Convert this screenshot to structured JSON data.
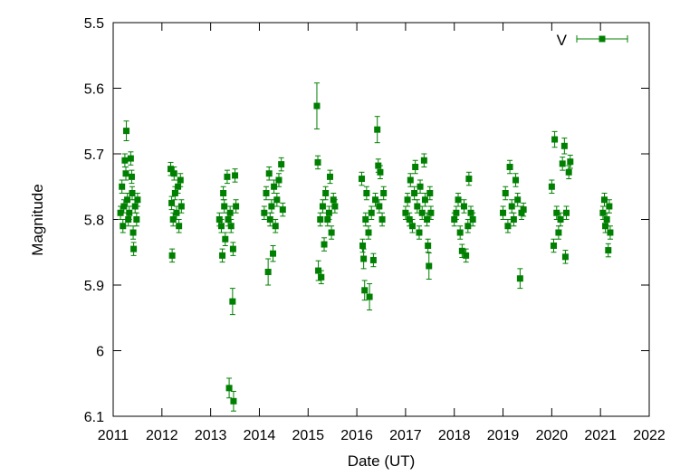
{
  "chart_data": {
    "type": "scatter",
    "title": "",
    "xlabel": "Date (UT)",
    "ylabel": "Magnitude",
    "xlim": [
      2011,
      2022
    ],
    "ylim": [
      5.5,
      6.1
    ],
    "y_inverted": true,
    "grid": false,
    "legend_position": "top-right",
    "x_ticks": [
      "2011",
      "2012",
      "2013",
      "2014",
      "2015",
      "2016",
      "2017",
      "2018",
      "2019",
      "2020",
      "2021",
      "2022"
    ],
    "y_ticks": [
      "5.5",
      "5.6",
      "5.7",
      "5.8",
      "5.9",
      "6",
      "6.1"
    ],
    "series": [
      {
        "name": "V",
        "color": "#008000",
        "marker": "square",
        "error_bars": true,
        "points": [
          [
            2011.15,
            5.79,
            0.01
          ],
          [
            2011.18,
            5.75,
            0.01
          ],
          [
            2011.2,
            5.81,
            0.01
          ],
          [
            2011.22,
            5.78,
            0.01
          ],
          [
            2011.24,
            5.71,
            0.01
          ],
          [
            2011.26,
            5.73,
            0.01
          ],
          [
            2011.27,
            5.665,
            0.015
          ],
          [
            2011.29,
            5.77,
            0.01
          ],
          [
            2011.31,
            5.8,
            0.01
          ],
          [
            2011.33,
            5.79,
            0.01
          ],
          [
            2011.36,
            5.707,
            0.01
          ],
          [
            2011.38,
            5.735,
            0.01
          ],
          [
            2011.39,
            5.76,
            0.01
          ],
          [
            2011.41,
            5.82,
            0.01
          ],
          [
            2011.42,
            5.845,
            0.01
          ],
          [
            2011.45,
            5.78,
            0.01
          ],
          [
            2011.48,
            5.8,
            0.01
          ],
          [
            2011.5,
            5.77,
            0.01
          ],
          [
            2012.18,
            5.723,
            0.01
          ],
          [
            2012.2,
            5.775,
            0.01
          ],
          [
            2012.21,
            5.855,
            0.01
          ],
          [
            2012.23,
            5.8,
            0.01
          ],
          [
            2012.25,
            5.73,
            0.01
          ],
          [
            2012.27,
            5.76,
            0.01
          ],
          [
            2012.3,
            5.79,
            0.01
          ],
          [
            2012.33,
            5.75,
            0.01
          ],
          [
            2012.35,
            5.81,
            0.01
          ],
          [
            2012.38,
            5.74,
            0.01
          ],
          [
            2012.4,
            5.78,
            0.01
          ],
          [
            2013.18,
            5.8,
            0.01
          ],
          [
            2013.22,
            5.81,
            0.01
          ],
          [
            2013.24,
            5.855,
            0.01
          ],
          [
            2013.26,
            5.76,
            0.01
          ],
          [
            2013.28,
            5.78,
            0.01
          ],
          [
            2013.3,
            5.83,
            0.01
          ],
          [
            2013.34,
            5.735,
            0.01
          ],
          [
            2013.36,
            5.8,
            0.01
          ],
          [
            2013.38,
            6.057,
            0.015
          ],
          [
            2013.4,
            5.79,
            0.01
          ],
          [
            2013.42,
            5.81,
            0.01
          ],
          [
            2013.45,
            5.925,
            0.02
          ],
          [
            2013.46,
            5.845,
            0.01
          ],
          [
            2013.47,
            6.077,
            0.015
          ],
          [
            2013.5,
            5.733,
            0.01
          ],
          [
            2013.52,
            5.78,
            0.01
          ],
          [
            2014.1,
            5.79,
            0.01
          ],
          [
            2014.14,
            5.76,
            0.01
          ],
          [
            2014.18,
            5.88,
            0.02
          ],
          [
            2014.2,
            5.73,
            0.01
          ],
          [
            2014.22,
            5.8,
            0.01
          ],
          [
            2014.25,
            5.78,
            0.01
          ],
          [
            2014.28,
            5.852,
            0.012
          ],
          [
            2014.3,
            5.75,
            0.01
          ],
          [
            2014.33,
            5.81,
            0.01
          ],
          [
            2014.36,
            5.77,
            0.01
          ],
          [
            2014.4,
            5.74,
            0.01
          ],
          [
            2014.45,
            5.716,
            0.01
          ],
          [
            2014.48,
            5.785,
            0.01
          ],
          [
            2015.18,
            5.627,
            0.035
          ],
          [
            2015.2,
            5.713,
            0.01
          ],
          [
            2015.21,
            5.878,
            0.015
          ],
          [
            2015.25,
            5.8,
            0.01
          ],
          [
            2015.27,
            5.888,
            0.01
          ],
          [
            2015.3,
            5.78,
            0.01
          ],
          [
            2015.33,
            5.838,
            0.01
          ],
          [
            2015.36,
            5.76,
            0.01
          ],
          [
            2015.4,
            5.8,
            0.01
          ],
          [
            2015.43,
            5.79,
            0.01
          ],
          [
            2015.45,
            5.735,
            0.01
          ],
          [
            2015.48,
            5.82,
            0.01
          ],
          [
            2015.52,
            5.77,
            0.01
          ],
          [
            2015.55,
            5.78,
            0.01
          ],
          [
            2016.1,
            5.738,
            0.01
          ],
          [
            2016.12,
            5.84,
            0.01
          ],
          [
            2016.14,
            5.86,
            0.015
          ],
          [
            2016.16,
            5.908,
            0.015
          ],
          [
            2016.18,
            5.8,
            0.01
          ],
          [
            2016.2,
            5.76,
            0.01
          ],
          [
            2016.24,
            5.82,
            0.01
          ],
          [
            2016.26,
            5.918,
            0.02
          ],
          [
            2016.3,
            5.79,
            0.01
          ],
          [
            2016.34,
            5.862,
            0.01
          ],
          [
            2016.38,
            5.77,
            0.01
          ],
          [
            2016.42,
            5.663,
            0.02
          ],
          [
            2016.44,
            5.718,
            0.01
          ],
          [
            2016.46,
            5.78,
            0.01
          ],
          [
            2016.48,
            5.728,
            0.01
          ],
          [
            2016.52,
            5.8,
            0.01
          ],
          [
            2016.55,
            5.76,
            0.01
          ],
          [
            2017.0,
            5.79,
            0.01
          ],
          [
            2017.04,
            5.77,
            0.01
          ],
          [
            2017.08,
            5.8,
            0.01
          ],
          [
            2017.1,
            5.74,
            0.01
          ],
          [
            2017.14,
            5.81,
            0.01
          ],
          [
            2017.18,
            5.76,
            0.01
          ],
          [
            2017.2,
            5.72,
            0.01
          ],
          [
            2017.24,
            5.78,
            0.01
          ],
          [
            2017.28,
            5.82,
            0.01
          ],
          [
            2017.3,
            5.75,
            0.01
          ],
          [
            2017.34,
            5.79,
            0.01
          ],
          [
            2017.38,
            5.71,
            0.01
          ],
          [
            2017.4,
            5.77,
            0.01
          ],
          [
            2017.44,
            5.8,
            0.01
          ],
          [
            2017.46,
            5.84,
            0.01
          ],
          [
            2017.48,
            5.871,
            0.02
          ],
          [
            2017.5,
            5.76,
            0.01
          ],
          [
            2017.52,
            5.79,
            0.01
          ],
          [
            2018.0,
            5.8,
            0.01
          ],
          [
            2018.04,
            5.79,
            0.01
          ],
          [
            2018.08,
            5.77,
            0.01
          ],
          [
            2018.12,
            5.82,
            0.01
          ],
          [
            2018.16,
            5.848,
            0.01
          ],
          [
            2018.2,
            5.78,
            0.01
          ],
          [
            2018.24,
            5.855,
            0.01
          ],
          [
            2018.28,
            5.81,
            0.01
          ],
          [
            2018.3,
            5.738,
            0.01
          ],
          [
            2018.34,
            5.79,
            0.01
          ],
          [
            2018.38,
            5.8,
            0.01
          ],
          [
            2019.0,
            5.79,
            0.01
          ],
          [
            2019.05,
            5.76,
            0.01
          ],
          [
            2019.1,
            5.81,
            0.01
          ],
          [
            2019.14,
            5.72,
            0.01
          ],
          [
            2019.18,
            5.78,
            0.01
          ],
          [
            2019.22,
            5.8,
            0.01
          ],
          [
            2019.26,
            5.74,
            0.01
          ],
          [
            2019.3,
            5.77,
            0.01
          ],
          [
            2019.35,
            5.89,
            0.015
          ],
          [
            2019.38,
            5.79,
            0.01
          ],
          [
            2019.42,
            5.785,
            0.01
          ],
          [
            2020.0,
            5.75,
            0.01
          ],
          [
            2020.04,
            5.84,
            0.01
          ],
          [
            2020.06,
            5.678,
            0.012
          ],
          [
            2020.1,
            5.79,
            0.01
          ],
          [
            2020.14,
            5.82,
            0.01
          ],
          [
            2020.18,
            5.8,
            0.01
          ],
          [
            2020.22,
            5.715,
            0.01
          ],
          [
            2020.26,
            5.688,
            0.012
          ],
          [
            2020.28,
            5.857,
            0.01
          ],
          [
            2020.3,
            5.79,
            0.01
          ],
          [
            2020.35,
            5.728,
            0.01
          ],
          [
            2020.38,
            5.712,
            0.01
          ],
          [
            2021.05,
            5.79,
            0.01
          ],
          [
            2021.08,
            5.77,
            0.01
          ],
          [
            2021.1,
            5.81,
            0.01
          ],
          [
            2021.13,
            5.8,
            0.01
          ],
          [
            2021.16,
            5.847,
            0.01
          ],
          [
            2021.18,
            5.78,
            0.01
          ],
          [
            2021.2,
            5.82,
            0.01
          ]
        ]
      }
    ]
  }
}
